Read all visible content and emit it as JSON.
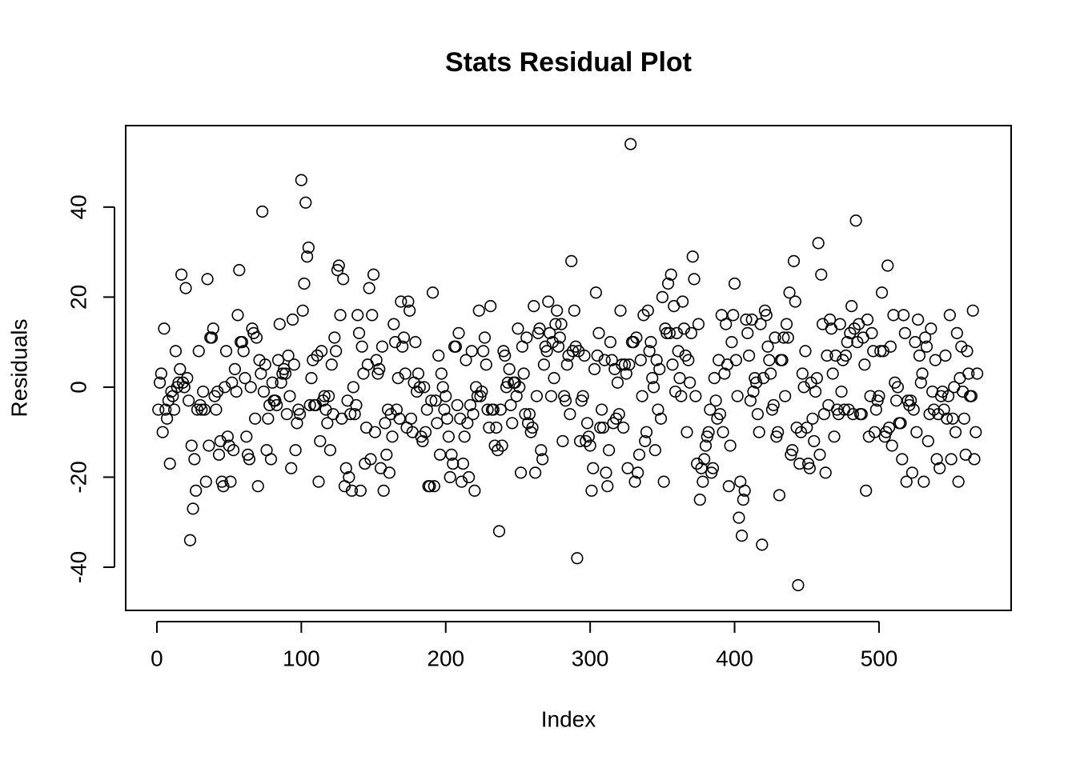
{
  "chart_data": {
    "type": "scatter",
    "title": "Stats Residual Plot",
    "x_label": "Index",
    "y_label": "Residuals",
    "x": [
      1,
      2,
      3,
      4,
      5,
      6,
      7,
      8,
      9,
      10,
      11,
      12,
      13,
      14,
      15,
      16,
      17,
      18,
      19,
      20,
      21,
      22,
      23,
      24,
      25,
      26,
      27,
      28,
      29,
      30,
      31,
      32,
      33,
      34,
      35,
      36,
      37,
      38,
      39,
      40,
      41,
      42,
      43,
      44,
      45,
      46,
      47,
      48,
      49,
      50,
      51,
      52,
      53,
      54,
      55,
      56,
      57,
      58,
      59,
      60,
      61,
      62,
      63,
      64,
      65,
      66,
      67,
      68,
      69,
      70,
      71,
      72,
      73,
      74,
      75,
      76,
      77,
      78,
      79,
      80,
      81,
      82,
      83,
      84,
      85,
      86,
      87,
      88,
      89,
      90,
      91,
      92,
      93,
      94,
      95,
      96,
      97,
      98,
      99,
      100,
      101,
      102,
      103,
      104,
      105,
      106,
      107,
      108,
      109,
      110,
      111,
      112,
      113,
      114,
      115,
      116,
      117,
      118,
      119,
      120,
      121,
      122,
      123,
      124,
      125,
      126,
      127,
      128,
      129,
      130,
      131,
      132,
      133,
      134,
      135,
      136,
      137,
      138,
      139,
      140,
      141,
      142,
      143,
      144,
      145,
      146,
      147,
      148,
      149,
      150,
      151,
      152,
      153,
      154,
      155,
      156,
      157,
      158,
      159,
      160,
      161,
      162,
      163,
      164,
      165,
      166,
      167,
      168,
      169,
      170,
      171,
      172,
      173,
      174,
      175,
      176,
      177,
      178,
      179,
      180,
      181,
      182,
      183,
      184,
      185,
      186,
      187,
      188,
      189,
      190,
      191,
      192,
      193,
      194,
      195,
      196,
      197,
      198,
      199,
      200,
      201,
      202,
      203,
      204,
      205,
      206,
      207,
      208,
      209,
      210,
      211,
      212,
      213,
      214,
      215,
      216,
      217,
      218,
      219,
      220,
      221,
      222,
      223,
      224,
      225,
      226,
      227,
      228,
      229,
      230,
      231,
      232,
      233,
      234,
      235,
      236,
      237,
      238,
      239,
      240,
      241,
      242,
      243,
      244,
      245,
      246,
      247,
      248,
      249,
      250,
      251,
      252,
      253,
      254,
      255,
      256,
      257,
      258,
      259,
      260,
      261,
      262,
      263,
      264,
      265,
      266,
      267,
      268,
      269,
      270,
      271,
      272,
      273,
      274,
      275,
      276,
      277,
      278,
      279,
      280,
      281,
      282,
      283,
      284,
      285,
      286,
      287,
      288,
      289,
      290,
      291,
      292,
      293,
      294,
      295,
      296,
      297,
      298,
      299,
      300,
      301,
      302,
      303,
      304,
      305,
      306,
      307,
      308,
      309,
      310,
      311,
      312,
      313,
      314,
      315,
      316,
      317,
      318,
      319,
      320,
      321,
      322,
      323,
      324,
      325,
      326,
      327,
      328,
      329,
      330,
      331,
      332,
      333,
      334,
      335,
      336,
      337,
      338,
      339,
      340,
      341,
      342,
      343,
      344,
      345,
      346,
      347,
      348,
      349,
      350,
      351,
      352,
      353,
      354,
      355,
      356,
      357,
      358,
      359,
      360,
      361,
      362,
      363,
      364,
      365,
      366,
      367,
      368,
      369,
      370,
      371,
      372,
      373,
      374,
      375,
      376,
      377,
      378,
      379,
      380,
      381,
      382,
      383,
      384,
      385,
      386,
      387,
      388,
      389,
      390,
      391,
      392,
      393,
      394,
      395,
      396,
      397,
      398,
      399,
      400,
      401,
      402,
      403,
      404,
      405,
      406,
      407,
      408,
      409,
      410,
      411,
      412,
      413,
      414,
      415,
      416,
      417,
      418,
      419,
      420,
      421,
      422,
      423,
      424,
      425,
      426,
      427,
      428,
      429,
      430,
      431,
      432,
      433,
      434,
      435,
      436,
      437,
      438,
      439,
      440,
      441,
      442,
      443,
      444,
      445,
      446,
      447,
      448,
      449,
      450,
      451,
      452,
      453,
      454,
      455,
      456,
      457,
      458,
      459,
      460,
      461,
      462,
      463,
      464,
      465,
      466,
      467,
      468,
      469,
      470,
      471,
      472,
      473,
      474,
      475,
      476,
      477,
      478,
      479,
      480,
      481,
      482,
      483,
      484,
      485,
      486,
      487,
      488,
      489,
      490,
      491,
      492,
      493,
      494,
      495,
      496,
      497,
      498,
      499,
      500,
      501,
      502,
      503,
      504,
      505,
      506,
      507,
      508,
      509,
      510,
      511,
      512,
      513,
      514,
      515,
      516,
      517,
      518,
      519,
      520,
      521,
      522,
      523,
      524,
      525,
      526,
      527,
      528,
      529,
      530,
      531,
      532,
      533,
      534,
      535,
      536,
      537,
      538,
      539,
      540,
      541,
      542,
      543,
      544,
      545,
      546,
      547,
      548,
      549,
      550,
      551,
      552,
      553,
      554,
      555,
      556,
      557,
      558,
      559,
      560,
      561,
      562,
      563,
      564,
      565,
      566,
      567,
      568
    ],
    "values": [
      -5,
      1,
      3,
      -10,
      13,
      -5,
      -7,
      -3,
      -17,
      -1,
      -2,
      -5,
      8,
      0,
      1,
      4,
      25,
      1,
      0,
      22,
      2,
      -3,
      -34,
      -13,
      -27,
      -16,
      -23,
      -5,
      8,
      -4,
      -5,
      -1,
      -5,
      -21,
      24,
      -13,
      11,
      11,
      13,
      -2,
      -5,
      -1,
      -15,
      -12,
      -21,
      -22,
      0,
      8,
      -11,
      -13,
      -21,
      1,
      -14,
      4,
      -1,
      16,
      26,
      10,
      10,
      8,
      2,
      -11,
      -15,
      -16,
      0,
      13,
      12,
      -7,
      11,
      -22,
      6,
      3,
      39,
      -1,
      5,
      -14,
      -7,
      -4,
      -16,
      1,
      -3,
      -3,
      -4,
      6,
      14,
      1,
      3,
      4,
      3,
      -6,
      7,
      -2,
      -18,
      15,
      5,
      -14,
      -8,
      -5,
      -6,
      46,
      17,
      23,
      41,
      29,
      31,
      -4,
      2,
      6,
      -4,
      -4,
      7,
      -21,
      -12,
      8,
      -3,
      -2,
      -5,
      -8,
      -2,
      -14,
      5,
      -6,
      11,
      8,
      26,
      27,
      16,
      -7,
      24,
      -22,
      -18,
      -3,
      -20,
      -6,
      -23,
      0,
      -6,
      -4,
      16,
      12,
      -23,
      9,
      3,
      -17,
      -9,
      5,
      22,
      -16,
      16,
      25,
      -10,
      6,
      3,
      4,
      -18,
      9,
      -23,
      -8,
      -15,
      -5,
      -19,
      -6,
      -11,
      14,
      10,
      -5,
      2,
      -7,
      19,
      9,
      11,
      3,
      -9,
      19,
      17,
      -7,
      -10,
      1,
      10,
      -1,
      3,
      0,
      -11,
      -12,
      0,
      -10,
      -5,
      -22,
      -22,
      -3,
      21,
      -22,
      -3,
      -8,
      7,
      -15,
      3,
      0,
      -5,
      -2,
      -7,
      -11,
      -20,
      -15,
      -17,
      9,
      9,
      -4,
      12,
      -7,
      -21,
      -17,
      -11,
      6,
      -8,
      -20,
      -4,
      8,
      -6,
      -23,
      0,
      -2,
      17,
      -2,
      -1,
      8,
      11,
      5,
      -5,
      -9,
      18,
      -5,
      -5,
      -13,
      -9,
      -14,
      -32,
      -5,
      -13,
      8,
      7,
      0,
      1,
      4,
      -4,
      -8,
      1,
      1,
      -2,
      13,
      0,
      -19,
      9,
      3,
      -6,
      11,
      -8,
      -6,
      -10,
      -9,
      18,
      -19,
      -2,
      12,
      13,
      -14,
      -16,
      5,
      9,
      8,
      19,
      12,
      -2,
      10,
      2,
      14,
      17,
      9,
      11,
      14,
      -12,
      -2,
      -3,
      5,
      7,
      -6,
      28,
      8,
      17,
      9,
      -38,
      8,
      -12,
      -3,
      -2,
      7,
      -12,
      -8,
      -11,
      -13,
      -23,
      -18,
      4,
      21,
      7,
      12,
      -9,
      -5,
      -9,
      6,
      -19,
      -22,
      -14,
      10,
      6,
      -8,
      4,
      -7,
      1,
      -6,
      17,
      5,
      -9,
      5,
      3,
      -18,
      5,
      54,
      10,
      10,
      -21,
      11,
      -19,
      -15,
      6,
      -2,
      16,
      -12,
      -10,
      17,
      8,
      10,
      2,
      0,
      -14,
      6,
      -5,
      4,
      -7,
      20,
      -21,
      13,
      12,
      23,
      12,
      25,
      5,
      18,
      -1,
      12,
      8,
      2,
      -2,
      19,
      13,
      7,
      -10,
      6,
      1,
      12,
      29,
      24,
      -2,
      -17,
      14,
      -25,
      -18,
      -21,
      -16,
      -13,
      -11,
      -10,
      -5,
      -19,
      -18,
      2,
      -3,
      -7,
      6,
      -6,
      16,
      -10,
      3,
      14,
      5,
      -22,
      -13,
      10,
      16,
      23,
      6,
      -2,
      -29,
      -21,
      -33,
      -25,
      -23,
      15,
      12,
      7,
      -3,
      15,
      -1,
      2,
      1,
      -6,
      -10,
      14,
      -35,
      2,
      17,
      16,
      9,
      6,
      3,
      -5,
      -4,
      11,
      -11,
      -10,
      -24,
      6,
      6,
      11,
      -2,
      14,
      11,
      21,
      -15,
      -14,
      28,
      19,
      -9,
      -44,
      -17,
      -10,
      3,
      0,
      8,
      -9,
      -17,
      -18,
      1,
      -7,
      -12,
      -1,
      2,
      32,
      -15,
      25,
      14,
      -6,
      -19,
      7,
      -4,
      15,
      13,
      3,
      -11,
      7,
      -5,
      -6,
      14,
      -1,
      6,
      -5,
      7,
      10,
      -5,
      12,
      18,
      -6,
      13,
      37,
      10,
      14,
      -6,
      -6,
      11,
      5,
      -23,
      15,
      -11,
      -2,
      12,
      8,
      -10,
      -5,
      -3,
      -2,
      8,
      21,
      8,
      -11,
      -10,
      27,
      -9,
      9,
      -13,
      16,
      1,
      -3,
      0,
      -8,
      -8,
      -16,
      16,
      12,
      -21,
      -3,
      -4,
      -3,
      -19,
      -5,
      10,
      -10,
      15,
      7,
      1,
      3,
      -21,
      11,
      9,
      -12,
      -6,
      13,
      -1,
      -5,
      6,
      -16,
      -6,
      -18,
      -2,
      -1,
      -5,
      7,
      -7,
      -2,
      16,
      -16,
      -7,
      0,
      -10,
      12,
      -21,
      2,
      9,
      -1,
      -7,
      -15,
      8,
      3,
      -2,
      -2,
      17,
      -16,
      -10,
      3
    ],
    "color": "#000000",
    "xlim": [
      -21.6,
      591.5
    ],
    "ylim": [
      -49.6,
      58.1
    ],
    "xticks": [
      0,
      100,
      200,
      300,
      400,
      500
    ],
    "yticks": [
      -40,
      -20,
      0,
      20,
      40
    ],
    "grid": false
  }
}
